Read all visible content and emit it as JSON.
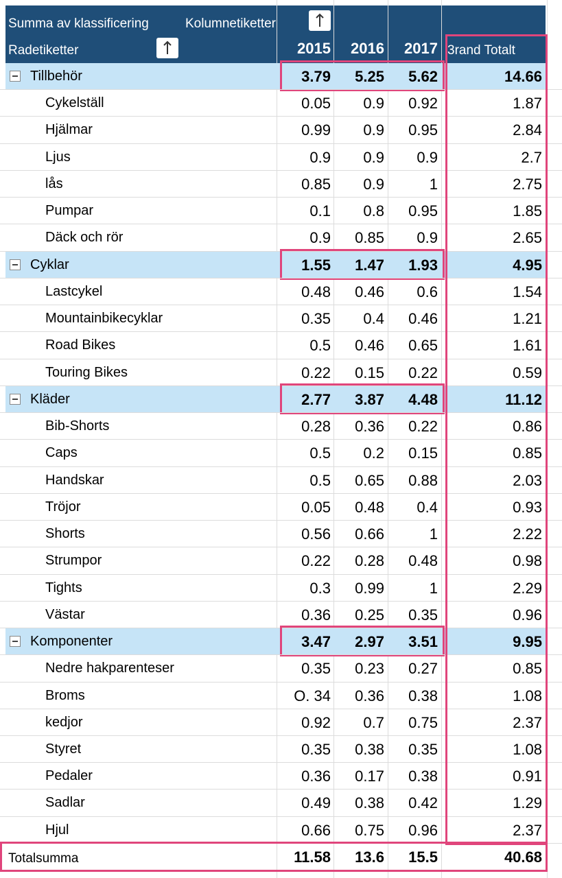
{
  "header": {
    "values_label": "Summa av klassificering",
    "column_labels": "Kolumnetiketter",
    "row_labels": "Radetiketter",
    "years": [
      "2015",
      "2016",
      "2017"
    ],
    "grand_total": "3rand Totalt"
  },
  "groups": [
    {
      "name": "Tillbehör",
      "values": [
        "3.79",
        "5.25",
        "5.62",
        "14.66"
      ],
      "rows": [
        {
          "label": "Cykelställ",
          "values": [
            "0.05",
            "0.9",
            "0.92",
            "1.87"
          ]
        },
        {
          "label": "Hjälmar",
          "values": [
            "0.99",
            "0.9",
            "0.95",
            "2.84"
          ]
        },
        {
          "label": "Ljus",
          "values": [
            "0.9",
            "0.9",
            "0.9",
            "2.7"
          ]
        },
        {
          "label": "lås",
          "values": [
            "0.85",
            "0.9",
            "1",
            "2.75"
          ]
        },
        {
          "label": "Pumpar",
          "values": [
            "0.1",
            "0.8",
            "0.95",
            "1.85"
          ]
        },
        {
          "label": "Däck och rör",
          "values": [
            "0.9",
            "0.85",
            "0.9",
            "2.65"
          ]
        }
      ]
    },
    {
      "name": "Cyklar",
      "values": [
        "1.55",
        "1.47",
        "1.93",
        "4.95"
      ],
      "rows": [
        {
          "label": "Lastcykel",
          "values": [
            "0.48",
            "0.46",
            "0.6",
            "1.54"
          ]
        },
        {
          "label": "Mountainbikecyklar",
          "values": [
            "0.35",
            "0.4",
            "0.46",
            "1.21"
          ]
        },
        {
          "label": "Road Bikes",
          "values": [
            "0.5",
            "0.46",
            "0.65",
            "1.61"
          ]
        },
        {
          "label": "Touring Bikes",
          "values": [
            "0.22",
            "0.15",
            "0.22",
            "0.59"
          ]
        }
      ]
    },
    {
      "name": "Kläder",
      "values": [
        "2.77",
        "3.87",
        "4.48",
        "11.12"
      ],
      "rows": [
        {
          "label": "Bib-Shorts",
          "values": [
            "0.28",
            "0.36",
            "0.22",
            "0.86"
          ]
        },
        {
          "label": "Caps",
          "values": [
            "0.5",
            "0.2",
            "0.15",
            "0.85"
          ]
        },
        {
          "label": "Handskar",
          "values": [
            "0.5",
            "0.65",
            "0.88",
            "2.03"
          ]
        },
        {
          "label": "Tröjor",
          "values": [
            "0.05",
            "0.48",
            "0.4",
            "0.93"
          ]
        },
        {
          "label": "Shorts",
          "values": [
            "0.56",
            "0.66",
            "1",
            "2.22"
          ]
        },
        {
          "label": "Strumpor",
          "values": [
            "0.22",
            "0.28",
            "0.48",
            "0.98"
          ]
        },
        {
          "label": "Tights",
          "values": [
            "0.3",
            "0.99",
            "1",
            "2.29"
          ]
        },
        {
          "label": "Västar",
          "values": [
            "0.36",
            "0.25",
            "0.35",
            "0.96"
          ]
        }
      ]
    },
    {
      "name": "Komponenter",
      "values": [
        "3.47",
        "2.97",
        "3.51",
        "9.95"
      ],
      "rows": [
        {
          "label": "Nedre hakparenteser",
          "values": [
            "0.35",
            "0.23",
            "0.27",
            "0.85"
          ]
        },
        {
          "label": "Broms",
          "values": [
            "O. 34",
            "0.36",
            "0.38",
            "1.08"
          ]
        },
        {
          "label": "kedjor",
          "values": [
            "0.92",
            "0.7",
            "0.75",
            "2.37"
          ]
        },
        {
          "label": "Styret",
          "values": [
            "0.35",
            "0.38",
            "0.35",
            "1.08"
          ]
        },
        {
          "label": "Pedaler",
          "values": [
            "0.36",
            "0.17",
            "0.38",
            "0.91"
          ]
        },
        {
          "label": "Sadlar",
          "values": [
            "0.49",
            "0.38",
            "0.42",
            "1.29"
          ]
        },
        {
          "label": "Hjul",
          "values": [
            "0.66",
            "0.75",
            "0.96",
            "2.37"
          ]
        }
      ]
    }
  ],
  "total": {
    "label": "Totalsumma",
    "values": [
      "11.58",
      "13.6",
      "15.5",
      "40.68"
    ]
  }
}
